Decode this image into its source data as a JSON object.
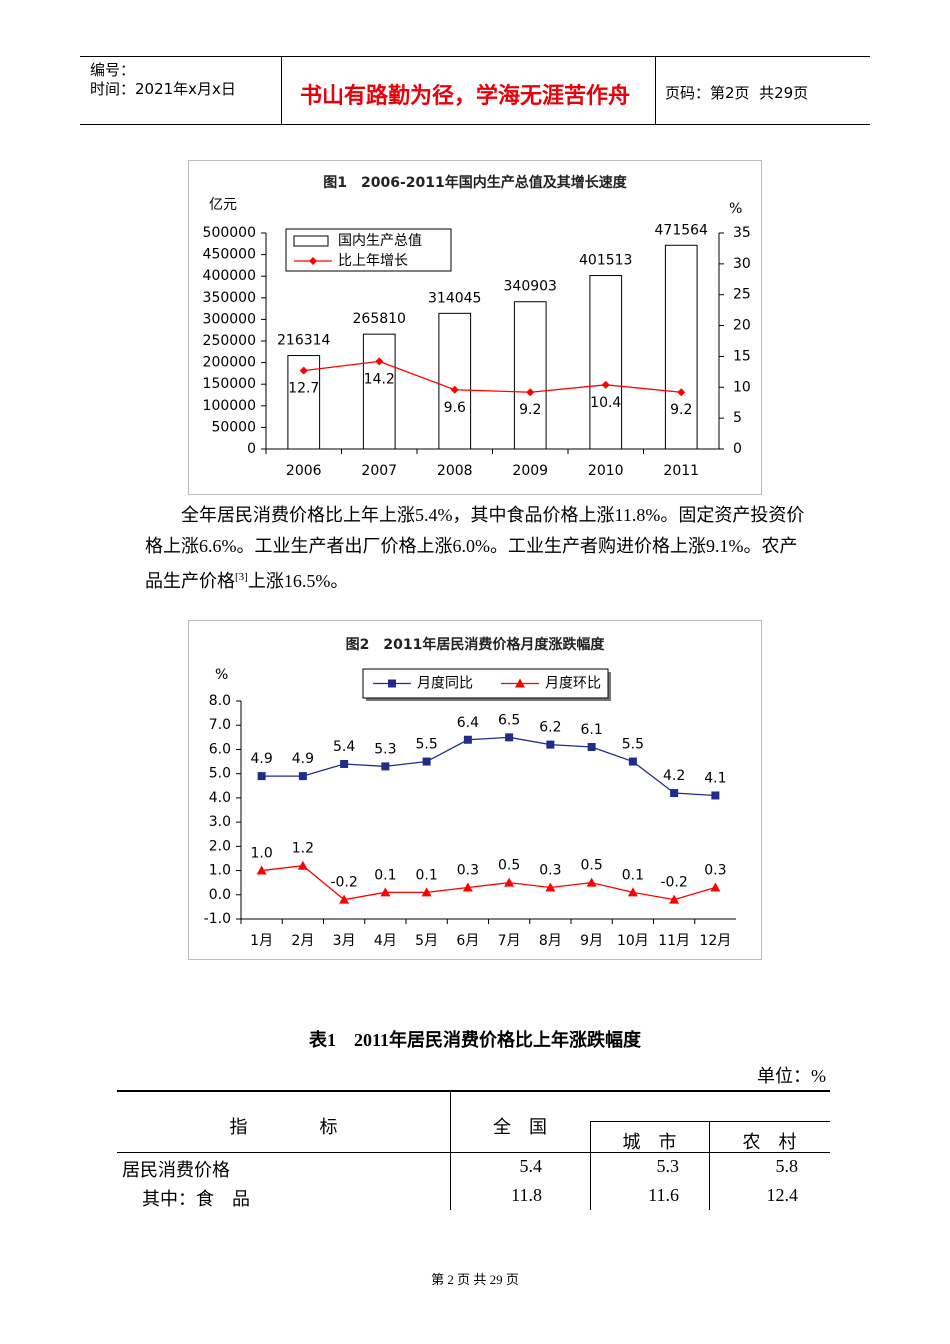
{
  "header": {
    "code_label": "编号：",
    "time": "时间：2021年x月x日",
    "motto": "书山有路勤为径，学海无涯苦作舟",
    "page": "页码：第2页  共29页"
  },
  "chart_data": [
    {
      "type": "bar",
      "title": "图1　2006-2011年国内生产总值及其增长速度",
      "y_label": "亿元",
      "y2_label": "%",
      "categories": [
        "2006",
        "2007",
        "2008",
        "2009",
        "2010",
        "2011"
      ],
      "series": [
        {
          "name": "国内生产总值",
          "type": "bar",
          "color": "#ffffff",
          "values": [
            216314,
            265810,
            314045,
            340903,
            401513,
            471564
          ]
        },
        {
          "name": "比上年增长",
          "type": "line",
          "axis": "y2",
          "marker": "diamond",
          "color": "#ff0000",
          "values": [
            12.7,
            14.2,
            9.6,
            9.2,
            10.4,
            9.2
          ]
        }
      ],
      "ylim": [
        0,
        500000
      ],
      "yticks": [
        0,
        50000,
        100000,
        150000,
        200000,
        250000,
        300000,
        350000,
        400000,
        450000,
        500000
      ],
      "y2lim": [
        0,
        35
      ],
      "y2ticks": [
        0,
        5,
        10,
        15,
        20,
        25,
        30,
        35
      ],
      "grid": false
    },
    {
      "type": "line",
      "title": "图2　2011年居民消费价格月度涨跌幅度",
      "y_label": "%",
      "categories": [
        "1月",
        "2月",
        "3月",
        "4月",
        "5月",
        "6月",
        "7月",
        "8月",
        "9月",
        "10月",
        "11月",
        "12月"
      ],
      "series": [
        {
          "name": "月度同比",
          "marker": "square",
          "color": "#1f2d8a",
          "values": [
            4.9,
            4.9,
            5.4,
            5.3,
            5.5,
            6.4,
            6.5,
            6.2,
            6.1,
            5.5,
            4.2,
            4.1
          ]
        },
        {
          "name": "月度环比",
          "marker": "triangle",
          "color": "#ff0000",
          "values": [
            1.0,
            1.2,
            -0.2,
            0.1,
            0.1,
            0.3,
            0.5,
            0.3,
            0.5,
            0.1,
            -0.2,
            0.3
          ],
          "value_labels": [
            "1.0",
            "1.2",
            "-0.2",
            "0.1",
            "0.1",
            "0.3",
            "0.5",
            "0.3",
            "0.5",
            "0.1",
            "-0.2",
            "0.3"
          ]
        }
      ],
      "ylim": [
        -1,
        8
      ],
      "yticks": [
        {
          "value": -1,
          "label": "-1.0"
        },
        {
          "value": 0,
          "label": "0.0"
        },
        {
          "value": 1,
          "label": "1.0"
        },
        {
          "value": 2,
          "label": "2.0"
        },
        {
          "value": 3,
          "label": "3.0"
        },
        {
          "value": 4,
          "label": "4.0"
        },
        {
          "value": 5,
          "label": "5.0"
        },
        {
          "value": 6,
          "label": "6.0"
        },
        {
          "value": 7,
          "label": "7.0"
        },
        {
          "value": 8,
          "label": "8.0"
        }
      ],
      "grid": false
    }
  ],
  "paragraph": {
    "before": "全年居民消费价格比上年上涨5.4%，其中食品价格上涨11.8%。固定资产投资价格上涨6.6%。工业生产者出厂价格上涨6.0%。工业生产者购进价格上涨9.1%。农产品生产价格",
    "note": "[3]",
    "after": "上涨16.5%。"
  },
  "table": {
    "title": "表1　2011年居民消费价格比上年涨跌幅度",
    "unit": "单位：%",
    "headers": [
      "指　　　　标",
      "全　国",
      "城　市",
      "农　村"
    ],
    "rows": [
      [
        "居民消费价格",
        "5.4",
        "5.3",
        "5.8"
      ],
      [
        "其中：食　品",
        "11.8",
        "11.6",
        "12.4"
      ]
    ]
  },
  "footer": "第 2 页 共 29 页"
}
